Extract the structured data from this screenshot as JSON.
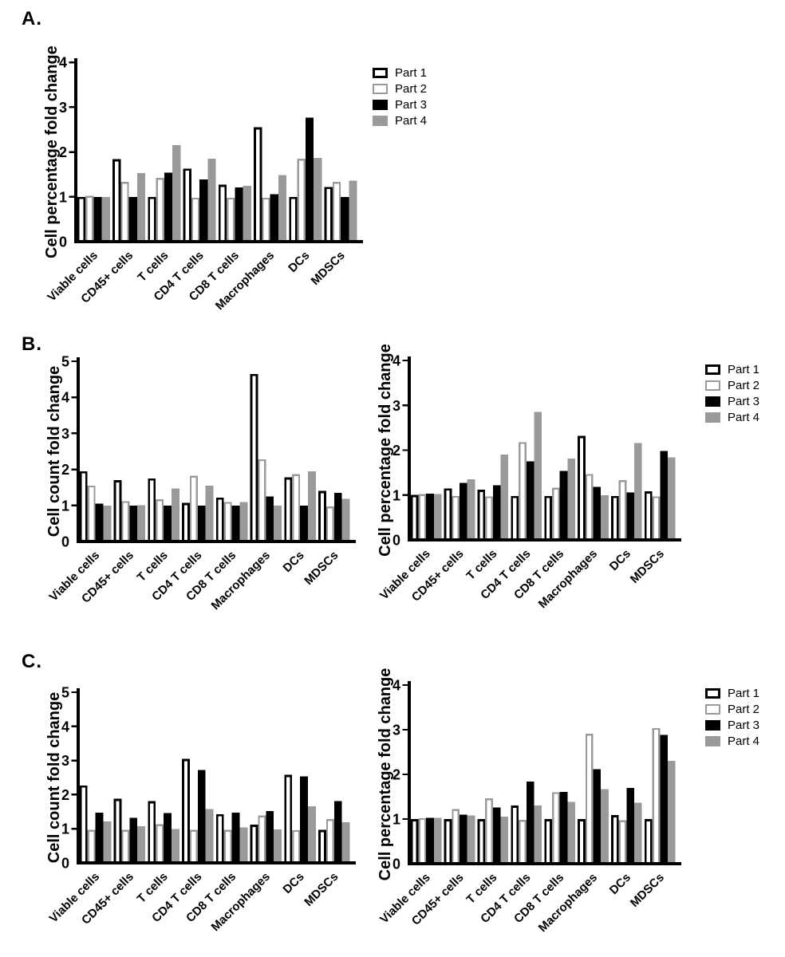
{
  "figure": {
    "panels": [
      {
        "id": "A",
        "label": "A."
      },
      {
        "id": "B",
        "label": "B."
      },
      {
        "id": "C",
        "label": "C."
      }
    ]
  },
  "legend": {
    "items": [
      {
        "label": "Part 1",
        "fill": "#ffffff",
        "border": "#000000",
        "border_width": 3
      },
      {
        "label": "Part 2",
        "fill": "#ffffff",
        "border": "#9a9a9a",
        "border_width": 2.5
      },
      {
        "label": "Part 3",
        "fill": "#000000",
        "border": "#000000",
        "border_width": 1
      },
      {
        "label": "Part 4",
        "fill": "#9a9a9a",
        "border": "#9a9a9a",
        "border_width": 1
      }
    ]
  },
  "colors": {
    "black": "#000000",
    "gray": "#9a9a9a",
    "white": "#ffffff"
  },
  "categories": [
    "Viable cells",
    "CD45+ cells",
    "T cells",
    "CD4 T cells",
    "CD8 T cells",
    "Macrophages",
    "DCs",
    "MDSCs"
  ],
  "chart_data": [
    {
      "id": "panel-a-percentage",
      "panel": "A",
      "type": "bar",
      "title": "",
      "xlabel": "",
      "ylabel": "Cell percentage fold change",
      "ylim": [
        0,
        4
      ],
      "yticks": [
        0,
        1,
        2,
        3,
        4
      ],
      "grid": false,
      "legend_position": "right",
      "categories": [
        "Viable cells",
        "CD45+ cells",
        "T cells",
        "CD4 T cells",
        "CD8 T cells",
        "Macrophages",
        "DCs",
        "MDSCs"
      ],
      "series": [
        {
          "name": "Part 1",
          "values": [
            1.0,
            1.84,
            1.0,
            1.63,
            1.27,
            2.55,
            1.0,
            1.22
          ]
        },
        {
          "name": "Part 2",
          "values": [
            1.02,
            1.33,
            1.42,
            0.98,
            0.98,
            0.98,
            1.85,
            1.33
          ]
        },
        {
          "name": "Part 3",
          "values": [
            1.0,
            1.0,
            1.54,
            1.39,
            1.21,
            1.06,
            2.77,
            1.0
          ]
        },
        {
          "name": "Part 4",
          "values": [
            1.0,
            1.53,
            2.15,
            1.85,
            1.25,
            1.49,
            1.87,
            1.36
          ]
        }
      ]
    },
    {
      "id": "panel-b-count",
      "panel": "B",
      "type": "bar",
      "title": "",
      "xlabel": "",
      "ylabel": "Cell count fold change",
      "ylim": [
        0,
        5
      ],
      "yticks": [
        0,
        1,
        2,
        3,
        4,
        5
      ],
      "grid": false,
      "legend_position": "none",
      "categories": [
        "Viable cells",
        "CD45+ cells",
        "T cells",
        "CD4 T cells",
        "CD8 T cells",
        "Macrophages",
        "DCs",
        "MDSCs"
      ],
      "series": [
        {
          "name": "Part 1",
          "values": [
            1.95,
            1.7,
            1.75,
            1.07,
            1.22,
            4.65,
            1.78,
            1.4
          ]
        },
        {
          "name": "Part 2",
          "values": [
            1.55,
            1.12,
            1.17,
            1.82,
            1.1,
            2.28,
            1.87,
            0.97
          ]
        },
        {
          "name": "Part 3",
          "values": [
            1.05,
            1.0,
            1.0,
            1.0,
            1.0,
            1.25,
            1.0,
            1.35
          ]
        },
        {
          "name": "Part 4",
          "values": [
            1.0,
            1.01,
            1.47,
            1.55,
            1.1,
            1.0,
            1.95,
            1.18
          ]
        }
      ]
    },
    {
      "id": "panel-b-percentage",
      "panel": "B",
      "type": "bar",
      "title": "",
      "xlabel": "",
      "ylabel": "Cell percentage fold change",
      "ylim": [
        0,
        4
      ],
      "yticks": [
        0,
        1,
        2,
        3,
        4
      ],
      "grid": false,
      "legend_position": "right",
      "categories": [
        "Viable cells",
        "CD45+ cells",
        "T cells",
        "CD4 T cells",
        "CD8 T cells",
        "Macrophages",
        "DCs",
        "MDSCs"
      ],
      "series": [
        {
          "name": "Part 1",
          "values": [
            1.0,
            1.15,
            1.12,
            0.98,
            0.98,
            2.32,
            0.98,
            1.08
          ]
        },
        {
          "name": "Part 2",
          "values": [
            1.02,
            0.98,
            0.97,
            2.18,
            1.16,
            1.47,
            1.33,
            0.97
          ]
        },
        {
          "name": "Part 3",
          "values": [
            1.03,
            1.27,
            1.22,
            1.75,
            1.54,
            1.18,
            1.06,
            1.98
          ]
        },
        {
          "name": "Part 4",
          "values": [
            1.02,
            1.35,
            1.9,
            2.85,
            1.81,
            1.0,
            2.16,
            1.84
          ]
        }
      ]
    },
    {
      "id": "panel-c-count",
      "panel": "C",
      "type": "bar",
      "title": "",
      "xlabel": "",
      "ylabel": "Cell count fold change",
      "ylim": [
        0,
        5
      ],
      "yticks": [
        0,
        1,
        2,
        3,
        4,
        5
      ],
      "grid": false,
      "legend_position": "none",
      "categories": [
        "Viable cells",
        "CD45+ cells",
        "T cells",
        "CD4 T cells",
        "CD8 T cells",
        "Macrophages",
        "DCs",
        "MDSCs"
      ],
      "series": [
        {
          "name": "Part 1",
          "values": [
            2.27,
            1.88,
            1.81,
            3.05,
            1.43,
            1.12,
            2.58,
            0.97
          ]
        },
        {
          "name": "Part 2",
          "values": [
            0.97,
            0.97,
            1.13,
            0.97,
            0.97,
            1.39,
            0.96,
            1.28
          ]
        },
        {
          "name": "Part 3",
          "values": [
            1.47,
            1.32,
            1.46,
            2.72,
            1.47,
            1.52,
            2.53,
            1.81
          ]
        },
        {
          "name": "Part 4",
          "values": [
            1.21,
            1.07,
            0.99,
            1.58,
            1.04,
            0.98,
            1.66,
            1.19
          ]
        }
      ]
    },
    {
      "id": "panel-c-percentage",
      "panel": "C",
      "type": "bar",
      "title": "",
      "xlabel": "",
      "ylabel": "Cell percentage fold change",
      "ylim": [
        0,
        4
      ],
      "yticks": [
        0,
        1,
        2,
        3,
        4
      ],
      "grid": false,
      "legend_position": "right",
      "categories": [
        "Viable cells",
        "CD45+ cells",
        "T cells",
        "CD4 T cells",
        "CD8 T cells",
        "Macrophages",
        "DCs",
        "MDSCs"
      ],
      "series": [
        {
          "name": "Part 1",
          "values": [
            1.0,
            1.0,
            1.0,
            1.3,
            1.0,
            1.0,
            1.09,
            1.0
          ]
        },
        {
          "name": "Part 2",
          "values": [
            1.02,
            1.22,
            1.46,
            0.98,
            1.6,
            2.91,
            0.97,
            3.04
          ]
        },
        {
          "name": "Part 3",
          "values": [
            1.03,
            1.1,
            1.26,
            1.84,
            1.61,
            2.12,
            1.7,
            2.88
          ]
        },
        {
          "name": "Part 4",
          "values": [
            1.03,
            1.08,
            1.05,
            1.3,
            1.38,
            1.67,
            1.37,
            2.3
          ]
        }
      ]
    }
  ]
}
